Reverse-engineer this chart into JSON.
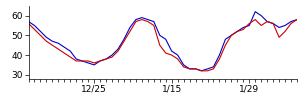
{
  "xlim": [
    0,
    45
  ],
  "ylim": [
    28,
    65
  ],
  "yticks": [
    30,
    40,
    50,
    60
  ],
  "xtick_positions": [
    11,
    24,
    37
  ],
  "xtick_labels": [
    "12/25",
    "1/15",
    "1/29"
  ],
  "blue_y": [
    57,
    55,
    52,
    49,
    47,
    46,
    44,
    42,
    38,
    37,
    36,
    35,
    37,
    38,
    40,
    43,
    48,
    54,
    58,
    59,
    58,
    57,
    50,
    48,
    42,
    40,
    35,
    33,
    33,
    32,
    33,
    34,
    40,
    48,
    50,
    52,
    54,
    55,
    62,
    60,
    57,
    56,
    54,
    55,
    57,
    58
  ],
  "red_y": [
    56,
    53,
    50,
    47,
    45,
    43,
    41,
    39,
    37,
    37,
    37,
    36,
    37,
    38,
    39,
    42,
    47,
    52,
    57,
    58,
    57,
    55,
    45,
    41,
    40,
    38,
    34,
    33,
    33,
    32,
    32,
    33,
    38,
    45,
    50,
    52,
    53,
    56,
    58,
    55,
    57,
    56,
    49,
    52,
    56,
    58
  ],
  "line_color_blue": "#0000cc",
  "line_color_red": "#cc0000",
  "bg_color": "#ffffff",
  "linewidth": 0.8,
  "tick_fontsize": 6.5
}
